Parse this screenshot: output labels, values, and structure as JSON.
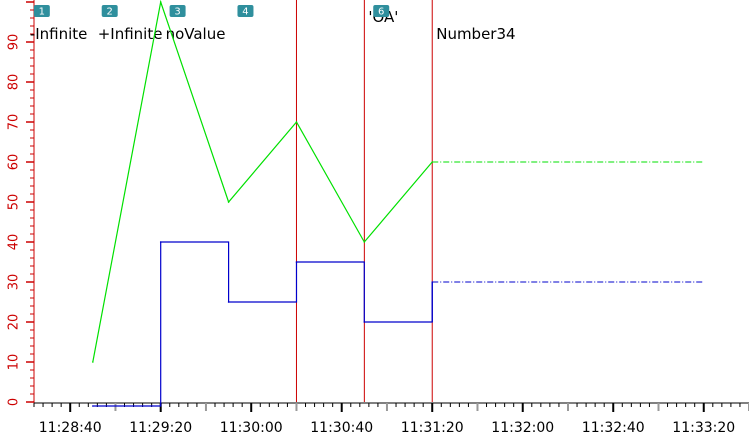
{
  "chart_data": {
    "type": "line",
    "title": "",
    "xlabel": "",
    "ylabel": "",
    "ylim": [
      0,
      100
    ],
    "y_ticks": [
      "0",
      "10",
      "20",
      "30",
      "40",
      "50",
      "60",
      "70",
      "80",
      "90"
    ],
    "x_ticks": [
      "11:28:40",
      "11:29:20",
      "11:30:00",
      "11:30:40",
      "11:31:20",
      "11:32:00",
      "11:32:40",
      "11:33:20"
    ],
    "x_range": [
      "11:28:24",
      "11:33:40"
    ],
    "grid": false,
    "colors": {
      "axis": "#cc0000",
      "marker_line": "#cc0000",
      "badge": "#2f8f9d"
    },
    "markers": [
      {
        "id": "1",
        "label": "-Infinite",
        "time": "11:28:50",
        "line": false
      },
      {
        "id": "2",
        "label": "+Infinite",
        "time": "11:29:20",
        "line": false
      },
      {
        "id": "3",
        "label": "noValue",
        "time": "11:29:50",
        "line": false
      },
      {
        "id": "4",
        "label": "",
        "time": "11:30:20",
        "line": true
      },
      {
        "id": "",
        "label": "'OA'",
        "time": "11:30:50",
        "line": true
      },
      {
        "id": "6",
        "label": "Number34",
        "time": "11:31:20",
        "line": true
      }
    ],
    "series": [
      {
        "color": "#00e000",
        "style": "line",
        "points": [
          [
            "11:28:50",
            10
          ],
          [
            "11:29:20",
            100
          ],
          [
            "11:29:50",
            50
          ],
          [
            "11:30:20",
            70
          ],
          [
            "11:30:50",
            40
          ],
          [
            "11:31:20",
            60
          ]
        ],
        "projection": {
          "from": "11:31:20",
          "to": "11:33:20",
          "value": 60
        }
      },
      {
        "color": "#0000cc",
        "style": "step",
        "points": [
          [
            "11:28:50",
            -1
          ],
          [
            "11:29:20",
            40
          ],
          [
            "11:29:50",
            25
          ],
          [
            "11:30:20",
            35
          ],
          [
            "11:30:50",
            20
          ],
          [
            "11:31:20",
            30
          ]
        ],
        "projection": {
          "from": "11:31:20",
          "to": "11:33:20",
          "value": 30
        }
      }
    ]
  }
}
